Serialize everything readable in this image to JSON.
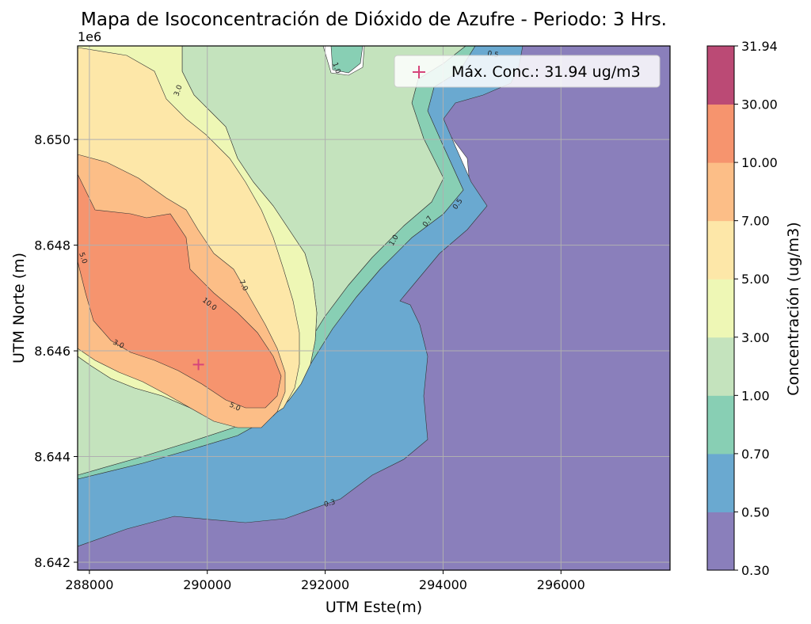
{
  "chart_data": {
    "type": "contour",
    "title": "Mapa de Isoconcentración de Dióxido de Azufre - Periodo: 3 Hrs.",
    "xlabel": "UTM Este(m)",
    "ylabel": "UTM Norte (m)",
    "y_offset_label": "1e6",
    "xlim": [
      287800,
      297850
    ],
    "ylim": [
      8641850,
      8651770
    ],
    "x_ticks": [
      288000,
      290000,
      292000,
      294000,
      296000
    ],
    "x_tick_labels": [
      "288000",
      "290000",
      "292000",
      "294000",
      "296000"
    ],
    "y_ticks": [
      8642000,
      8644000,
      8646000,
      8648000,
      8650000
    ],
    "y_tick_labels": [
      "8.642",
      "8.644",
      "8.646",
      "8.648",
      "8.650"
    ],
    "grid": true,
    "levels": [
      0.3,
      0.5,
      0.7,
      1.0,
      3.0,
      5.0,
      7.0,
      10.0,
      30.0,
      31.94
    ],
    "colorbar": {
      "label": "Concentración (ug/m3)",
      "tick_labels": [
        "0.30",
        "0.50",
        "0.70",
        "1.00",
        "3.00",
        "5.00",
        "7.00",
        "10.00",
        "30.00",
        "31.94"
      ],
      "colors": [
        "#8a7fbb",
        "#6aa9d0",
        "#88cfb4",
        "#c4e3bd",
        "#eef7b5",
        "#fde7a8",
        "#fcbe87",
        "#f6946e",
        "#bb4a75"
      ]
    },
    "contour_line_labels": [
      "0.3",
      "0.5",
      "0.7",
      "1.0",
      "3.0",
      "5.0",
      "7.0",
      "10.0",
      "3.0",
      "5.0",
      "5.0",
      "1.0",
      "0.5",
      "0.7",
      "1.0",
      "0.5"
    ],
    "max_point": {
      "x": 289850,
      "y": 8645740,
      "label": "Máx. Conc.: 31.94 ug/m3",
      "marker": "+",
      "color": "#d6457a"
    },
    "legend_placement": "top-right"
  }
}
